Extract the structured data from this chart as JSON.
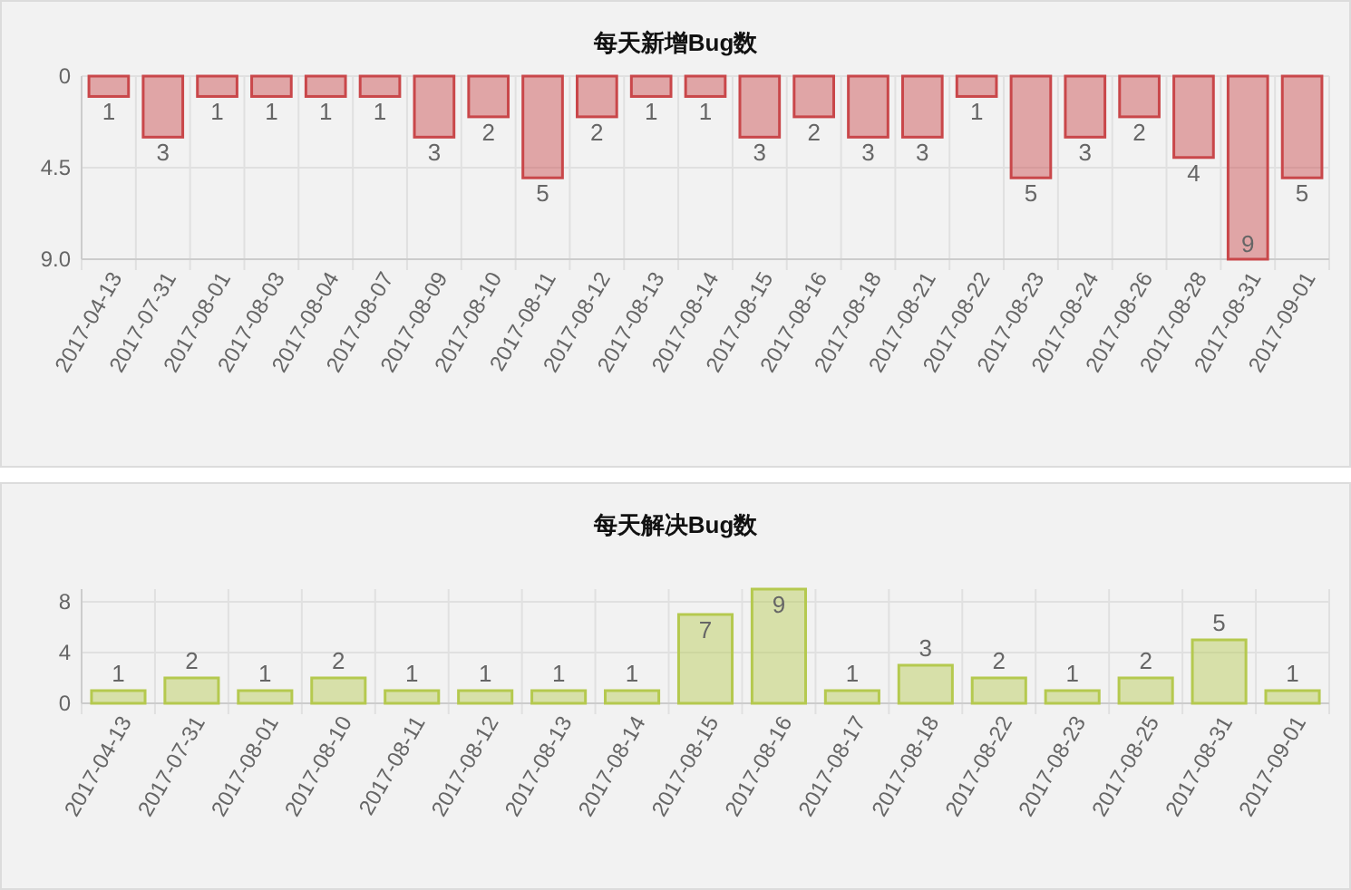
{
  "chart_data": [
    {
      "type": "bar",
      "title": "每天新增Bug数",
      "categories": [
        "2017-04-13",
        "2017-07-31",
        "2017-08-01",
        "2017-08-03",
        "2017-08-04",
        "2017-08-07",
        "2017-08-09",
        "2017-08-10",
        "2017-08-11",
        "2017-08-12",
        "2017-08-13",
        "2017-08-14",
        "2017-08-15",
        "2017-08-16",
        "2017-08-18",
        "2017-08-21",
        "2017-08-22",
        "2017-08-23",
        "2017-08-24",
        "2017-08-26",
        "2017-08-28",
        "2017-08-31",
        "2017-09-01"
      ],
      "series": [
        {
          "color": "#c9474a",
          "values": [
            1,
            3,
            1,
            1,
            1,
            1,
            3,
            2,
            5,
            2,
            1,
            1,
            3,
            2,
            3,
            3,
            1,
            5,
            3,
            2,
            4,
            9,
            5
          ]
        }
      ],
      "ylim": [
        9,
        0
      ],
      "yticks": [
        {
          "value": 0,
          "label": "0"
        },
        {
          "value": 4.5,
          "label": "4.5"
        },
        {
          "value": 9,
          "label": "9.0"
        }
      ],
      "grid": true,
      "data_labels": true
    },
    {
      "type": "bar",
      "title": "每天解决Bug数",
      "categories": [
        "2017-04-13",
        "2017-07-31",
        "2017-08-01",
        "2017-08-10",
        "2017-08-11",
        "2017-08-12",
        "2017-08-13",
        "2017-08-14",
        "2017-08-15",
        "2017-08-16",
        "2017-08-17",
        "2017-08-18",
        "2017-08-22",
        "2017-08-23",
        "2017-08-25",
        "2017-08-31",
        "2017-09-01"
      ],
      "series": [
        {
          "color": "#b5c94f",
          "values": [
            1,
            2,
            1,
            2,
            1,
            1,
            1,
            1,
            7,
            9,
            1,
            3,
            2,
            1,
            2,
            5,
            1
          ]
        }
      ],
      "ylim": [
        0,
        9
      ],
      "yticks": [
        0,
        4,
        8
      ],
      "grid": true,
      "data_labels": true
    }
  ]
}
